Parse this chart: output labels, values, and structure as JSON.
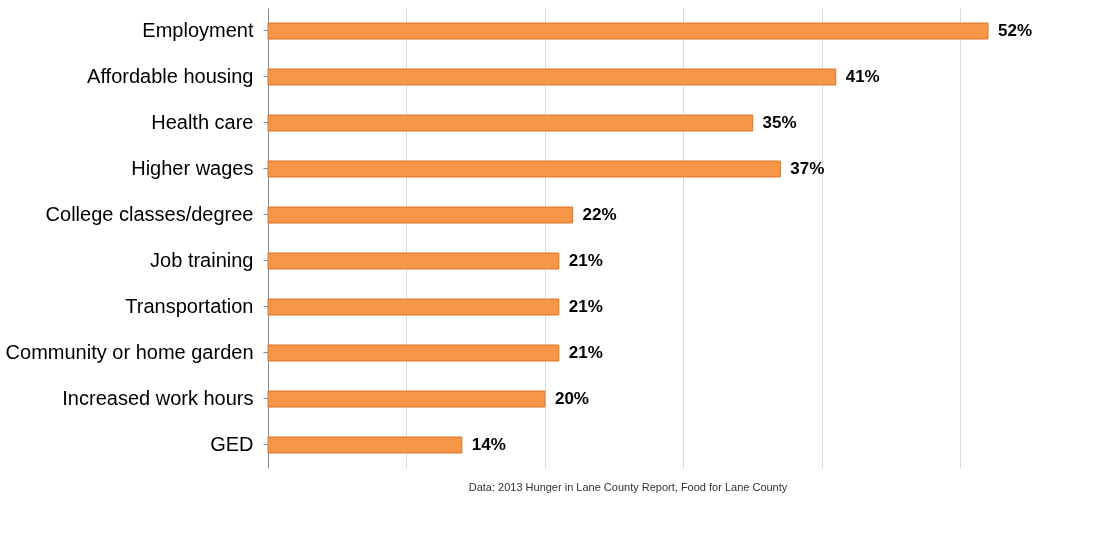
{
  "chart_data": {
    "type": "bar",
    "orientation": "horizontal",
    "categories": [
      "Employment",
      "Affordable housing",
      "Health care",
      "Higher wages",
      "College classes/degree",
      "Job training",
      "Transportation",
      "Community or home garden",
      "Increased work hours",
      "GED"
    ],
    "values": [
      52,
      41,
      35,
      37,
      22,
      21,
      21,
      21,
      20,
      14
    ],
    "color": "#f79646",
    "value_labels": [
      "52%",
      "41%",
      "35%",
      "37%",
      "22%",
      "21%",
      "21%",
      "21%",
      "20%",
      "14%"
    ],
    "xticks": [
      {
        "value": 10,
        "label": null
      },
      {
        "value": 20,
        "label": null
      },
      {
        "value": 30,
        "label": null
      },
      {
        "value": 40,
        "label": null
      },
      {
        "value": 50,
        "label": null
      }
    ],
    "grid": "x",
    "tick_labels": "y",
    "annotations": [
      "Data: 2013 Hunger in Lane County Report, Food for Lane County"
    ]
  }
}
